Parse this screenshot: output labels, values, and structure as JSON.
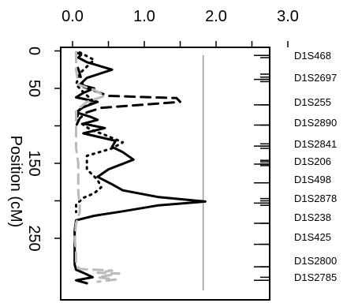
{
  "chart_data": {
    "type": "line",
    "title": "",
    "xlabel": "",
    "ylabel": "Position (cM)",
    "xlim": [
      0,
      3.5
    ],
    "ylim": [
      0,
      300
    ],
    "x_ticks": [
      0.0,
      1.0,
      2.0,
      3.0
    ],
    "x_tick_labels": [
      "0.0",
      "1.0",
      "2.0",
      "3.0"
    ],
    "y_ticks": [
      0,
      50,
      150,
      250
    ],
    "y_tick_labels": [
      "0",
      "50",
      "150",
      "250"
    ],
    "y_reversed": true,
    "threshold_line": {
      "x": 1.82,
      "color": "#9a9a9a"
    },
    "markers": [
      {
        "name": "D1S468",
        "position": 6
      },
      {
        "name": "D1S2697",
        "position": 38
      },
      {
        "name": "D1S255",
        "position": 72
      },
      {
        "name": "D1S2890",
        "position": 99
      },
      {
        "name": "D1S2841",
        "position": 127
      },
      {
        "name": "D1S206",
        "position": 151
      },
      {
        "name": "D1S498",
        "position": 176
      },
      {
        "name": "D1S2878",
        "position": 203
      },
      {
        "name": "D1S238",
        "position": 230
      },
      {
        "name": "D1S425",
        "position": 258
      },
      {
        "name": "D1S2800",
        "position": 288
      },
      {
        "name": "D1S2785",
        "position": 306
      }
    ],
    "minor_marker_ticks": [
      6,
      9,
      31,
      35,
      38,
      41,
      72,
      99,
      124,
      127,
      130,
      146,
      148,
      151,
      153,
      176,
      197,
      200,
      203,
      206,
      230,
      258,
      288,
      302,
      306
    ],
    "series": [
      {
        "style": "solid",
        "color": "#000000",
        "points": [
          [
            0.05,
            2
          ],
          [
            0.12,
            5
          ],
          [
            0.08,
            9
          ],
          [
            0.2,
            15
          ],
          [
            0.55,
            25
          ],
          [
            0.2,
            36
          ],
          [
            0.1,
            45
          ],
          [
            0.3,
            50
          ],
          [
            0.15,
            56
          ],
          [
            0.05,
            62
          ],
          [
            0.35,
            68
          ],
          [
            0.15,
            75
          ],
          [
            0.05,
            82
          ],
          [
            0.25,
            88
          ],
          [
            0.35,
            92
          ],
          [
            0.15,
            97
          ],
          [
            0.45,
            103
          ],
          [
            0.15,
            110
          ],
          [
            0.6,
            120
          ],
          [
            0.55,
            128
          ],
          [
            0.7,
            135
          ],
          [
            0.85,
            145
          ],
          [
            0.5,
            158
          ],
          [
            0.35,
            168
          ],
          [
            0.55,
            178
          ],
          [
            0.7,
            186
          ],
          [
            1.2,
            195
          ],
          [
            1.85,
            201
          ],
          [
            1.2,
            206
          ],
          [
            0.7,
            214
          ],
          [
            0.3,
            220
          ],
          [
            0.05,
            226
          ],
          [
            0.03,
            240
          ],
          [
            0.03,
            255
          ],
          [
            0.03,
            270
          ],
          [
            0.03,
            285
          ],
          [
            0.05,
            292
          ],
          [
            0.15,
            296
          ],
          [
            0.28,
            302
          ],
          [
            0.05,
            306
          ],
          [
            0.2,
            310
          ]
        ]
      },
      {
        "style": "dashed",
        "color": "#000000",
        "points": [
          [
            0.05,
            2
          ],
          [
            0.05,
            15
          ],
          [
            0.1,
            30
          ],
          [
            0.15,
            48
          ],
          [
            0.5,
            60
          ],
          [
            1.45,
            63
          ],
          [
            1.5,
            68
          ],
          [
            0.4,
            76
          ],
          [
            0.2,
            82
          ],
          [
            0.1,
            90
          ],
          [
            0.05,
            100
          ]
        ]
      },
      {
        "style": "dotted",
        "color": "#000000",
        "points": [
          [
            0.1,
            2
          ],
          [
            0.3,
            12
          ],
          [
            0.1,
            30
          ],
          [
            0.05,
            45
          ],
          [
            0.15,
            55
          ],
          [
            0.3,
            68
          ],
          [
            0.1,
            78
          ],
          [
            0.05,
            92
          ],
          [
            0.25,
            105
          ],
          [
            0.45,
            112
          ],
          [
            0.7,
            122
          ],
          [
            0.55,
            130
          ],
          [
            0.2,
            140
          ],
          [
            0.2,
            158
          ],
          [
            0.35,
            172
          ],
          [
            0.4,
            182
          ],
          [
            0.3,
            190
          ],
          [
            0.15,
            196
          ],
          [
            0.05,
            205
          ],
          [
            0.05,
            215
          ]
        ]
      },
      {
        "style": "dashed",
        "color": "#bbbbbb",
        "points": [
          [
            0.05,
            2
          ],
          [
            0.05,
            10
          ],
          [
            0.05,
            25
          ],
          [
            0.08,
            45
          ],
          [
            0.3,
            52
          ],
          [
            0.45,
            60
          ],
          [
            0.2,
            68
          ],
          [
            0.05,
            80
          ],
          [
            0.05,
            100
          ],
          [
            0.05,
            130
          ],
          [
            0.08,
            150
          ],
          [
            0.08,
            170
          ],
          [
            0.08,
            190
          ],
          [
            0.1,
            205
          ],
          [
            0.1,
            215
          ],
          [
            0.05,
            230
          ],
          [
            0.03,
            250
          ],
          [
            0.05,
            270
          ],
          [
            0.05,
            285
          ],
          [
            0.1,
            291
          ],
          [
            0.55,
            293
          ],
          [
            0.35,
            296
          ],
          [
            0.65,
            297
          ],
          [
            0.35,
            302
          ],
          [
            0.6,
            305
          ],
          [
            0.35,
            308
          ]
        ]
      }
    ]
  }
}
